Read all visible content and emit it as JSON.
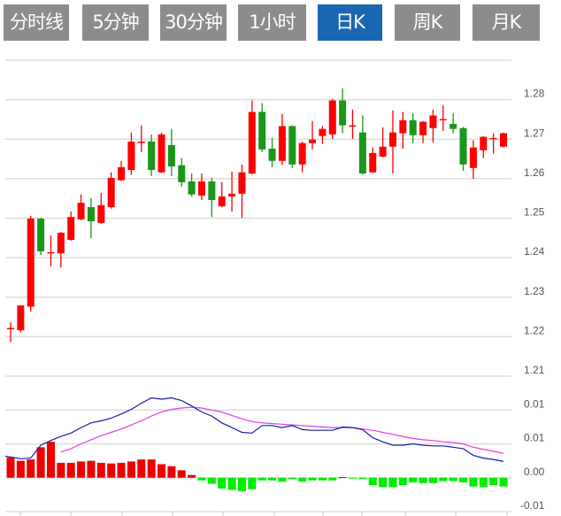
{
  "tabs": [
    {
      "label": "分时线",
      "active": false
    },
    {
      "label": "5分钟",
      "active": false
    },
    {
      "label": "30分钟",
      "active": false
    },
    {
      "label": "1小时",
      "active": false
    },
    {
      "label": "日K",
      "active": true
    },
    {
      "label": "周K",
      "active": false
    },
    {
      "label": "月K",
      "active": false
    }
  ],
  "colors": {
    "up": "#ff0000",
    "down": "#1a961a",
    "hist_up": "#ee0000",
    "hist_down": "#00ee00",
    "dif": "#1a1aaa",
    "dea": "#e040e0",
    "tab": "#8c8c8c",
    "tab_active": "#1b66b1"
  },
  "chart_data": [
    {
      "type": "candlestick",
      "title": "",
      "ylim": [
        1.21,
        1.29
      ],
      "y_tick_labels": [
        "1.28",
        "1.27",
        "1.26",
        "1.25",
        "1.24",
        "1.23",
        "1.22",
        "1.21"
      ],
      "y_ticks": [
        1.28,
        1.27,
        1.26,
        1.25,
        1.24,
        1.23,
        1.22,
        1.21
      ],
      "grid": true,
      "ohlc_fields": [
        "open",
        "close",
        "high",
        "low"
      ],
      "candles": [
        [
          1.2222,
          1.2222,
          1.2236,
          1.2186
        ],
        [
          1.2216,
          1.2279,
          1.2279,
          1.2211
        ],
        [
          1.2276,
          1.2499,
          1.2506,
          1.2263
        ],
        [
          1.2499,
          1.2416,
          1.2501,
          1.2407
        ],
        [
          1.2414,
          1.2414,
          1.2456,
          1.2378
        ],
        [
          1.2411,
          1.2463,
          1.2465,
          1.2375
        ],
        [
          1.2445,
          1.2503,
          1.2517,
          1.2443
        ],
        [
          1.2497,
          1.2539,
          1.256,
          1.2495
        ],
        [
          1.2528,
          1.2492,
          1.2551,
          1.2449
        ],
        [
          1.2488,
          1.2533,
          1.2564,
          1.2486
        ],
        [
          1.2528,
          1.2602,
          1.2616,
          1.2524
        ],
        [
          1.2596,
          1.2629,
          1.2645,
          1.2594
        ],
        [
          1.2622,
          1.2694,
          1.2717,
          1.2609
        ],
        [
          1.2694,
          1.2694,
          1.2735,
          1.2667
        ],
        [
          1.2694,
          1.2622,
          1.2712,
          1.2607
        ],
        [
          1.2616,
          1.2712,
          1.2717,
          1.2614
        ],
        [
          1.2685,
          1.2631,
          1.2726,
          1.2607
        ],
        [
          1.2634,
          1.2591,
          1.2652,
          1.258
        ],
        [
          1.2593,
          1.256,
          1.2613,
          1.2555
        ],
        [
          1.2557,
          1.2593,
          1.2613,
          1.2546
        ],
        [
          1.2593,
          1.2546,
          1.2602,
          1.2503
        ],
        [
          1.253,
          1.2555,
          1.2591,
          1.2528
        ],
        [
          1.2555,
          1.2562,
          1.2618,
          1.2517
        ],
        [
          1.2562,
          1.2616,
          1.2636,
          1.2501
        ],
        [
          1.2613,
          1.2769,
          1.2798,
          1.2611
        ],
        [
          1.2769,
          1.2674,
          1.2791,
          1.2667
        ],
        [
          1.2676,
          1.2645,
          1.2703,
          1.2629
        ],
        [
          1.2645,
          1.2733,
          1.2764,
          1.2634
        ],
        [
          1.2733,
          1.2636,
          1.2735,
          1.2627
        ],
        [
          1.2636,
          1.269,
          1.2694,
          1.2616
        ],
        [
          1.269,
          1.2699,
          1.2746,
          1.2674
        ],
        [
          1.2708,
          1.2726,
          1.2733,
          1.2688
        ],
        [
          1.2712,
          1.2798,
          1.2802,
          1.2701
        ],
        [
          1.2798,
          1.2735,
          1.2829,
          1.2715
        ],
        [
          1.2735,
          1.2735,
          1.2775,
          1.2701
        ],
        [
          1.2717,
          1.2613,
          1.276,
          1.2611
        ],
        [
          1.2616,
          1.2665,
          1.2679,
          1.2614
        ],
        [
          1.2656,
          1.2681,
          1.273,
          1.2654
        ],
        [
          1.2681,
          1.2717,
          1.2773,
          1.2613
        ],
        [
          1.2715,
          1.2748,
          1.2769,
          1.2676
        ],
        [
          1.2748,
          1.271,
          1.2766,
          1.269
        ],
        [
          1.271,
          1.2744,
          1.2746,
          1.269
        ],
        [
          1.2728,
          1.276,
          1.2775,
          1.2692
        ],
        [
          1.2751,
          1.2751,
          1.2786,
          1.2721
        ],
        [
          1.2739,
          1.2726,
          1.2766,
          1.2715
        ],
        [
          1.2728,
          1.2636,
          1.2731,
          1.262
        ],
        [
          1.2627,
          1.2679,
          1.2697,
          1.26
        ],
        [
          1.2672,
          1.2706,
          1.2708,
          1.2652
        ],
        [
          1.2703,
          1.2703,
          1.2715,
          1.2663
        ],
        [
          1.2681,
          1.2715,
          1.2717,
          1.2679
        ]
      ]
    },
    {
      "type": "macd",
      "ylim": [
        -0.005,
        0.015
      ],
      "y_ticks": [
        0.01,
        0.005,
        0.0,
        -0.005
      ],
      "y_tick_labels": [
        "0.01",
        "0.01",
        "0.00",
        "-0.01"
      ],
      "grid": true,
      "series": [
        {
          "name": "DIF",
          "type": "line",
          "values": [
            0.0032,
            0.0028,
            0.0029,
            0.0048,
            0.0055,
            0.0061,
            0.0066,
            0.0074,
            0.0081,
            0.0084,
            0.0088,
            0.0094,
            0.0101,
            0.011,
            0.0118,
            0.0116,
            0.0118,
            0.0114,
            0.0106,
            0.0097,
            0.0091,
            0.0081,
            0.0074,
            0.0067,
            0.0066,
            0.0077,
            0.0077,
            0.0074,
            0.0077,
            0.0071,
            0.007,
            0.007,
            0.007,
            0.0075,
            0.0074,
            0.0071,
            0.0059,
            0.0053,
            0.0048,
            0.0048,
            0.005,
            0.0048,
            0.0047,
            0.0047,
            0.0045,
            0.0043,
            0.0033,
            0.0029,
            0.0027,
            0.0024
          ]
        },
        {
          "name": "DEA",
          "type": "line",
          "values": [
            null,
            null,
            null,
            null,
            null,
            0.0038,
            0.0043,
            0.005,
            0.0056,
            0.0062,
            0.0067,
            0.0072,
            0.0078,
            0.0084,
            0.0091,
            0.0097,
            0.0101,
            0.0103,
            0.0104,
            0.0103,
            0.01,
            0.0097,
            0.0092,
            0.0087,
            0.0083,
            0.0081,
            0.008,
            0.0079,
            0.0078,
            0.0077,
            0.0076,
            0.0075,
            0.0074,
            0.0074,
            0.0074,
            0.0072,
            0.007,
            0.0067,
            0.0064,
            0.0061,
            0.0058,
            0.0056,
            0.0055,
            0.0053,
            0.0052,
            0.005,
            0.0045,
            0.0042,
            0.0039,
            0.0036
          ]
        },
        {
          "name": "MACD",
          "type": "bar",
          "values": [
            0.003,
            0.0025,
            0.0027,
            0.0045,
            0.0053,
            0.0022,
            0.0022,
            0.0024,
            0.0025,
            0.0022,
            0.0021,
            0.0022,
            0.0024,
            0.0027,
            0.0027,
            0.002,
            0.0017,
            0.0011,
            0.0004,
            -0.0004,
            -0.0009,
            -0.0016,
            -0.0018,
            -0.002,
            -0.0017,
            -0.0004,
            -0.0004,
            -0.0006,
            -0.0002,
            -0.0006,
            -0.0004,
            -0.0004,
            -0.0004,
            0.0001,
            -0.0001,
            -0.0002,
            -0.0011,
            -0.0014,
            -0.0014,
            -0.0011,
            -0.0007,
            -0.0008,
            -0.0008,
            -0.0005,
            -0.0005,
            -0.0007,
            -0.0013,
            -0.0014,
            -0.0011,
            -0.0013
          ]
        }
      ]
    }
  ]
}
